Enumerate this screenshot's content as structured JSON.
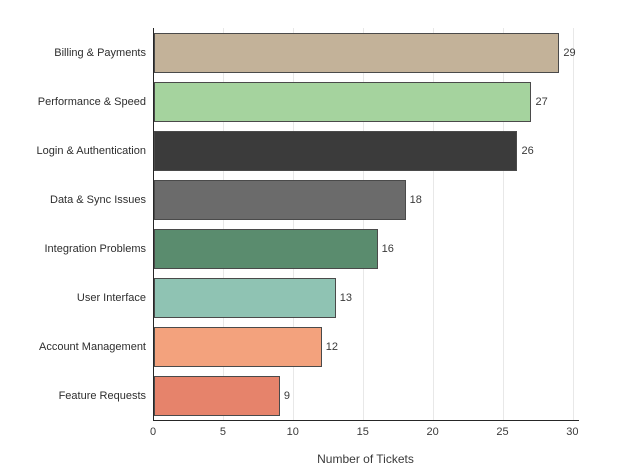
{
  "chart_data": {
    "type": "bar",
    "orientation": "horizontal",
    "title": "",
    "xlabel": "Number of Tickets",
    "ylabel": "",
    "categories": [
      "Billing & Payments",
      "Performance & Speed",
      "Login & Authentication",
      "Data & Sync Issues",
      "Integration Problems",
      "User Interface",
      "Account Management",
      "Feature Requests"
    ],
    "values": [
      29,
      27,
      26,
      18,
      16,
      13,
      12,
      9
    ],
    "value_labels": [
      "29",
      "27",
      "26",
      "18",
      "16",
      "13",
      "12",
      "9"
    ],
    "bar_colors": [
      "#c3b299",
      "#a5d39e",
      "#3b3b3b",
      "#6b6b6b",
      "#5a8c6e",
      "#8fc3b3",
      "#f3a27d",
      "#e6836b"
    ],
    "bar_edge_color": "#4a4a4a",
    "x_ticks": [
      0,
      5,
      10,
      15,
      20,
      25,
      30
    ],
    "x_tick_labels": [
      "0",
      "5",
      "10",
      "15",
      "20",
      "25",
      "30"
    ],
    "xlim": [
      0,
      30.4
    ],
    "grid": "vertical",
    "grid_color": "#e8e8e8",
    "axis_color": "#262626",
    "text_color": "#3a3a3a",
    "background_color": "#ffffff",
    "legend": null
  }
}
